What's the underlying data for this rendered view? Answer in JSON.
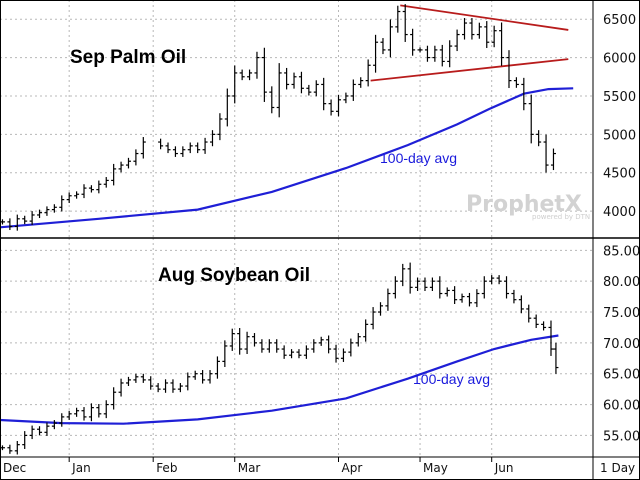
{
  "chart_data": [
    {
      "type": "ohlc",
      "title": "Sep Palm Oil",
      "ylim": [
        3650,
        6750
      ],
      "yticks": [
        4000,
        4500,
        5000,
        5500,
        6000,
        6500
      ],
      "moving_average_label": "100-day avg",
      "moving_average": [
        {
          "d": 0,
          "v": 3790
        },
        {
          "d": 40,
          "v": 3900
        },
        {
          "d": 80,
          "v": 4020
        },
        {
          "d": 110,
          "v": 4250
        },
        {
          "d": 140,
          "v": 4560
        },
        {
          "d": 165,
          "v": 4860
        },
        {
          "d": 185,
          "v": 5130
        },
        {
          "d": 198,
          "v": 5330
        },
        {
          "d": 212,
          "v": 5530
        },
        {
          "d": 222,
          "v": 5590
        },
        {
          "d": 232,
          "v": 5600
        }
      ],
      "closes": [
        {
          "d": 1,
          "v": 3860
        },
        {
          "d": 4,
          "v": 3800
        },
        {
          "d": 7,
          "v": 3900
        },
        {
          "d": 10,
          "v": 3870
        },
        {
          "d": 13,
          "v": 3950
        },
        {
          "d": 16,
          "v": 3980
        },
        {
          "d": 19,
          "v": 4020
        },
        {
          "d": 22,
          "v": 4050
        },
        {
          "d": 25,
          "v": 4150
        },
        {
          "d": 28,
          "v": 4200
        },
        {
          "d": 31,
          "v": 4220
        },
        {
          "d": 34,
          "v": 4300
        },
        {
          "d": 37,
          "v": 4280
        },
        {
          "d": 40,
          "v": 4350
        },
        {
          "d": 43,
          "v": 4400
        },
        {
          "d": 46,
          "v": 4550
        },
        {
          "d": 49,
          "v": 4600
        },
        {
          "d": 52,
          "v": 4650
        },
        {
          "d": 55,
          "v": 4750
        },
        {
          "d": 58,
          "v": 4900
        },
        {
          "d": 65,
          "v": 4850
        },
        {
          "d": 68,
          "v": 4800
        },
        {
          "d": 71,
          "v": 4750
        },
        {
          "d": 74,
          "v": 4800
        },
        {
          "d": 77,
          "v": 4850
        },
        {
          "d": 80,
          "v": 4800
        },
        {
          "d": 83,
          "v": 4900
        },
        {
          "d": 86,
          "v": 5000
        },
        {
          "d": 89,
          "v": 5200
        },
        {
          "d": 92,
          "v": 5500
        },
        {
          "d": 95,
          "v": 5800
        },
        {
          "d": 98,
          "v": 5750
        },
        {
          "d": 101,
          "v": 5800
        },
        {
          "d": 104,
          "v": 6000
        },
        {
          "d": 107,
          "v": 5550
        },
        {
          "d": 110,
          "v": 5350
        },
        {
          "d": 113,
          "v": 5800
        },
        {
          "d": 116,
          "v": 5650
        },
        {
          "d": 119,
          "v": 5750
        },
        {
          "d": 122,
          "v": 5600
        },
        {
          "d": 125,
          "v": 5550
        },
        {
          "d": 128,
          "v": 5650
        },
        {
          "d": 131,
          "v": 5400
        },
        {
          "d": 134,
          "v": 5300
        },
        {
          "d": 137,
          "v": 5450
        },
        {
          "d": 140,
          "v": 5500
        },
        {
          "d": 143,
          "v": 5650
        },
        {
          "d": 146,
          "v": 5700
        },
        {
          "d": 149,
          "v": 5900
        },
        {
          "d": 152,
          "v": 6200
        },
        {
          "d": 155,
          "v": 6100
        },
        {
          "d": 158,
          "v": 6400
        },
        {
          "d": 161,
          "v": 6600
        },
        {
          "d": 164,
          "v": 6300
        },
        {
          "d": 167,
          "v": 6100
        },
        {
          "d": 170,
          "v": 6100
        },
        {
          "d": 173,
          "v": 6000
        },
        {
          "d": 176,
          "v": 6100
        },
        {
          "d": 179,
          "v": 5950
        },
        {
          "d": 182,
          "v": 6150
        },
        {
          "d": 185,
          "v": 6300
        },
        {
          "d": 188,
          "v": 6450
        },
        {
          "d": 191,
          "v": 6300
        },
        {
          "d": 194,
          "v": 6400
        },
        {
          "d": 197,
          "v": 6200
        },
        {
          "d": 200,
          "v": 6350
        },
        {
          "d": 203,
          "v": 6000
        },
        {
          "d": 206,
          "v": 5700
        },
        {
          "d": 209,
          "v": 5650
        },
        {
          "d": 212,
          "v": 5400
        },
        {
          "d": 215,
          "v": 5000
        },
        {
          "d": 218,
          "v": 4900
        },
        {
          "d": 221,
          "v": 4600
        },
        {
          "d": 224,
          "v": 4750
        }
      ],
      "annotation": {
        "type": "symmetrical triangle",
        "upper": {
          "from": {
            "d": 162,
            "v": 6680
          },
          "to": {
            "d": 230,
            "v": 6360
          }
        },
        "lower": {
          "from": {
            "d": 150,
            "v": 5700
          },
          "to": {
            "d": 230,
            "v": 5980
          }
        },
        "left_edge": {
          "d": 150
        }
      }
    },
    {
      "type": "ohlc",
      "title": "Aug Soybean Oil",
      "ylim": [
        51.5,
        87
      ],
      "yticks": [
        55.0,
        60.0,
        65.0,
        70.0,
        75.0,
        80.0,
        85.0
      ],
      "tick_labels": [
        "55.00",
        "60.00",
        "65.00",
        "70.00",
        "75.00",
        "80.00",
        "85.00"
      ],
      "moving_average_label": "100-day avg",
      "moving_average": [
        {
          "d": 0,
          "v": 57.5
        },
        {
          "d": 25,
          "v": 57.0
        },
        {
          "d": 50,
          "v": 56.9
        },
        {
          "d": 80,
          "v": 57.6
        },
        {
          "d": 110,
          "v": 59.0
        },
        {
          "d": 140,
          "v": 61.0
        },
        {
          "d": 165,
          "v": 64.2
        },
        {
          "d": 185,
          "v": 67.0
        },
        {
          "d": 200,
          "v": 69.0
        },
        {
          "d": 215,
          "v": 70.5
        },
        {
          "d": 226,
          "v": 71.2
        }
      ],
      "closes": [
        {
          "d": 1,
          "v": 53
        },
        {
          "d": 4,
          "v": 52.5
        },
        {
          "d": 7,
          "v": 53.5
        },
        {
          "d": 10,
          "v": 55
        },
        {
          "d": 13,
          "v": 56
        },
        {
          "d": 16,
          "v": 55.5
        },
        {
          "d": 19,
          "v": 56.5
        },
        {
          "d": 22,
          "v": 57
        },
        {
          "d": 25,
          "v": 58
        },
        {
          "d": 28,
          "v": 58.5
        },
        {
          "d": 31,
          "v": 59
        },
        {
          "d": 34,
          "v": 58
        },
        {
          "d": 37,
          "v": 59.5
        },
        {
          "d": 40,
          "v": 58.5
        },
        {
          "d": 43,
          "v": 60
        },
        {
          "d": 46,
          "v": 62
        },
        {
          "d": 49,
          "v": 63.5
        },
        {
          "d": 52,
          "v": 64
        },
        {
          "d": 55,
          "v": 64.5
        },
        {
          "d": 58,
          "v": 64
        },
        {
          "d": 61,
          "v": 63
        },
        {
          "d": 64,
          "v": 62.5
        },
        {
          "d": 67,
          "v": 63.5
        },
        {
          "d": 70,
          "v": 62.5
        },
        {
          "d": 73,
          "v": 63
        },
        {
          "d": 76,
          "v": 64.5
        },
        {
          "d": 79,
          "v": 65
        },
        {
          "d": 82,
          "v": 64
        },
        {
          "d": 85,
          "v": 65
        },
        {
          "d": 88,
          "v": 67
        },
        {
          "d": 91,
          "v": 69.5
        },
        {
          "d": 94,
          "v": 71.5
        },
        {
          "d": 97,
          "v": 69
        },
        {
          "d": 100,
          "v": 71
        },
        {
          "d": 103,
          "v": 70
        },
        {
          "d": 106,
          "v": 69
        },
        {
          "d": 109,
          "v": 70
        },
        {
          "d": 112,
          "v": 69
        },
        {
          "d": 115,
          "v": 68
        },
        {
          "d": 118,
          "v": 68.5
        },
        {
          "d": 121,
          "v": 68
        },
        {
          "d": 124,
          "v": 69
        },
        {
          "d": 127,
          "v": 70
        },
        {
          "d": 130,
          "v": 70.5
        },
        {
          "d": 133,
          "v": 69
        },
        {
          "d": 136,
          "v": 67.5
        },
        {
          "d": 139,
          "v": 68.5
        },
        {
          "d": 142,
          "v": 70
        },
        {
          "d": 145,
          "v": 71
        },
        {
          "d": 148,
          "v": 73
        },
        {
          "d": 151,
          "v": 75
        },
        {
          "d": 154,
          "v": 76
        },
        {
          "d": 157,
          "v": 78
        },
        {
          "d": 160,
          "v": 80
        },
        {
          "d": 163,
          "v": 82
        },
        {
          "d": 166,
          "v": 79
        },
        {
          "d": 169,
          "v": 80
        },
        {
          "d": 172,
          "v": 79
        },
        {
          "d": 175,
          "v": 80
        },
        {
          "d": 178,
          "v": 78
        },
        {
          "d": 181,
          "v": 78.5
        },
        {
          "d": 184,
          "v": 77
        },
        {
          "d": 187,
          "v": 77.5
        },
        {
          "d": 190,
          "v": 76.5
        },
        {
          "d": 193,
          "v": 78
        },
        {
          "d": 196,
          "v": 80
        },
        {
          "d": 199,
          "v": 80.5
        },
        {
          "d": 202,
          "v": 80
        },
        {
          "d": 205,
          "v": 78
        },
        {
          "d": 208,
          "v": 77
        },
        {
          "d": 211,
          "v": 75.5
        },
        {
          "d": 214,
          "v": 74
        },
        {
          "d": 217,
          "v": 73
        },
        {
          "d": 220,
          "v": 72.5
        },
        {
          "d": 223,
          "v": 69
        },
        {
          "d": 225,
          "v": 66
        }
      ]
    }
  ],
  "x_axis": {
    "total_days": 240,
    "months": [
      {
        "label": "Dec",
        "day": 0
      },
      {
        "label": "Jan",
        "day": 28
      },
      {
        "label": "Feb",
        "day": 62
      },
      {
        "label": "Mar",
        "day": 95
      },
      {
        "label": "Apr",
        "day": 137
      },
      {
        "label": "May",
        "day": 170
      },
      {
        "label": "Jun",
        "day": 199
      }
    ],
    "interval_label": "1 Day"
  },
  "watermark": {
    "brand": "ProphetX",
    "tagline": "powered by DTN"
  },
  "colors": {
    "average": "#1f1fd6",
    "triangle": "#b81c1c",
    "bars": "#000000"
  }
}
